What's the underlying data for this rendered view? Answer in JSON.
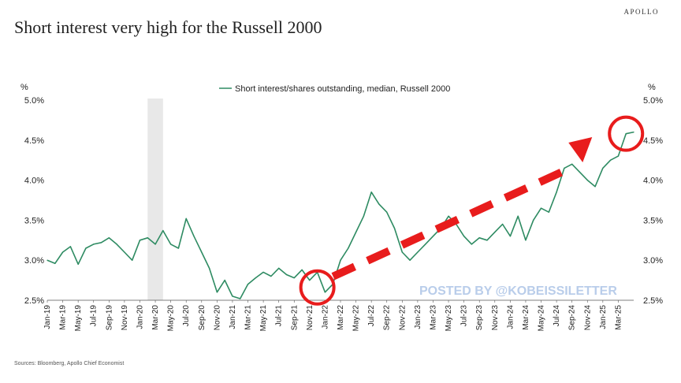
{
  "header": {
    "brand": "APOLLO",
    "title": "Short interest very high for the Russell 2000"
  },
  "footer": {
    "source": "Sources: Bloomberg, Apollo Chief Economist"
  },
  "watermark": "POSTED BY @KOBEISSILETTER",
  "colors": {
    "series": "#2e8b62",
    "shading": "#e8e8e8",
    "annotation": "#e81c1c",
    "watermark": "#b9cdea"
  },
  "chart_data": {
    "type": "line",
    "title": "Short interest very high for the Russell 2000",
    "ylabel_left": "%",
    "ylabel_right": "%",
    "ylim": [
      2.5,
      5.0
    ],
    "yticks": [
      "5.0%",
      "4.5%",
      "4.0%",
      "3.5%",
      "3.0%",
      "2.5%"
    ],
    "yvalues": [
      5.0,
      4.5,
      4.0,
      3.5,
      3.0,
      2.5
    ],
    "xlim": [
      "2019-01",
      "2025-05"
    ],
    "xtick_labels": [
      "Jan-19",
      "Mar-19",
      "May-19",
      "Jul-19",
      "Sep-19",
      "Nov-19",
      "Jan-20",
      "Mar-20",
      "May-20",
      "Jul-20",
      "Sep-20",
      "Nov-20",
      "Jan-21",
      "Mar-21",
      "May-21",
      "Jul-21",
      "Sep-21",
      "Nov-21",
      "Jan-22",
      "Mar-22",
      "May-22",
      "Jul-22",
      "Sep-22",
      "Nov-22",
      "Jan-23",
      "Mar-23",
      "May-23",
      "Jul-23",
      "Sep-23",
      "Nov-23",
      "Jan-24",
      "Mar-24",
      "May-24",
      "Jul-24",
      "Sep-24",
      "Nov-24",
      "Jan-25",
      "Mar-25"
    ],
    "grid": false,
    "legend_position": "top-center",
    "shaded_period": [
      "2020-02",
      "2020-04"
    ],
    "series": [
      {
        "name": "Short interest/shares outstanding, median, Russell 2000",
        "x": [
          "2019-01",
          "2019-02",
          "2019-03",
          "2019-04",
          "2019-05",
          "2019-06",
          "2019-07",
          "2019-08",
          "2019-09",
          "2019-10",
          "2019-11",
          "2019-12",
          "2020-01",
          "2020-02",
          "2020-03",
          "2020-04",
          "2020-05",
          "2020-06",
          "2020-07",
          "2020-08",
          "2020-09",
          "2020-10",
          "2020-11",
          "2020-12",
          "2021-01",
          "2021-02",
          "2021-03",
          "2021-04",
          "2021-05",
          "2021-06",
          "2021-07",
          "2021-08",
          "2021-09",
          "2021-10",
          "2021-11",
          "2021-12",
          "2022-01",
          "2022-02",
          "2022-03",
          "2022-04",
          "2022-05",
          "2022-06",
          "2022-07",
          "2022-08",
          "2022-09",
          "2022-10",
          "2022-11",
          "2022-12",
          "2023-01",
          "2023-02",
          "2023-03",
          "2023-04",
          "2023-05",
          "2023-06",
          "2023-07",
          "2023-08",
          "2023-09",
          "2023-10",
          "2023-11",
          "2023-12",
          "2024-01",
          "2024-02",
          "2024-03",
          "2024-04",
          "2024-05",
          "2024-06",
          "2024-07",
          "2024-08",
          "2024-09",
          "2024-10",
          "2024-11",
          "2024-12",
          "2025-01",
          "2025-02",
          "2025-03",
          "2025-04",
          "2025-05"
        ],
        "values": [
          3.0,
          2.96,
          3.1,
          3.17,
          2.95,
          3.15,
          3.2,
          3.22,
          3.28,
          3.2,
          3.1,
          3.0,
          3.25,
          3.28,
          3.2,
          3.37,
          3.2,
          3.15,
          3.52,
          3.3,
          3.1,
          2.9,
          2.6,
          2.75,
          2.55,
          2.52,
          2.7,
          2.78,
          2.85,
          2.8,
          2.9,
          2.82,
          2.78,
          2.88,
          2.75,
          2.85,
          2.6,
          2.7,
          3.0,
          3.15,
          3.35,
          3.55,
          3.85,
          3.7,
          3.6,
          3.4,
          3.1,
          3.0,
          3.1,
          3.2,
          3.3,
          3.4,
          3.55,
          3.45,
          3.3,
          3.2,
          3.28,
          3.25,
          3.35,
          3.45,
          3.3,
          3.55,
          3.25,
          3.5,
          3.65,
          3.6,
          3.85,
          4.15,
          4.2,
          4.1,
          4.0,
          3.92,
          4.15,
          4.25,
          4.3,
          4.58,
          4.6
        ]
      }
    ]
  }
}
